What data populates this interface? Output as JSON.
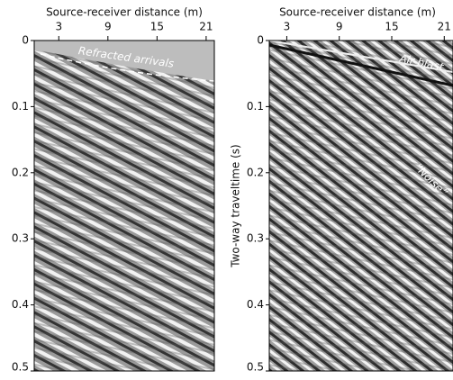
{
  "chart_data": [
    {
      "type": "image",
      "xlabel": "Source-receiver distance (m)",
      "xlim": [
        0,
        22
      ],
      "xticks": [
        3,
        9,
        15,
        21
      ],
      "ylim": [
        0,
        0.5
      ],
      "yticks": [
        0,
        0.1,
        0.2,
        0.3,
        0.4,
        0.5
      ],
      "annotations": [
        "Refracted arrivals"
      ]
    },
    {
      "type": "image",
      "xlabel": "Source-receiver distance (m)",
      "ylabel": "Two-way traveltime (s)",
      "xlim": [
        1,
        22
      ],
      "xticks": [
        3,
        9,
        15,
        21
      ],
      "ylim": [
        0,
        0.5
      ],
      "yticks": [
        0,
        0.1,
        0.2,
        0.3,
        0.4,
        0.5
      ],
      "annotations": [
        "Air-blast",
        "“Noise”"
      ]
    }
  ]
}
